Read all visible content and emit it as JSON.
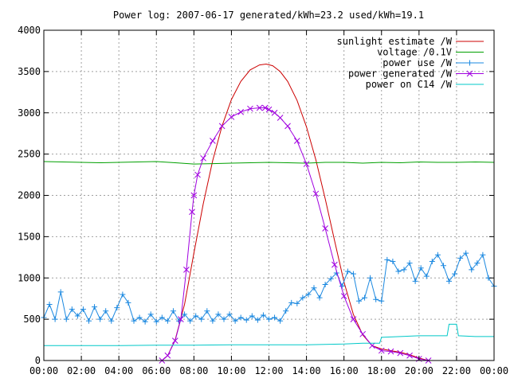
{
  "chart_data": {
    "type": "line",
    "title": "Power log: 2007-06-17 generated/kWh=23.2 used/kWh=19.1",
    "xlabel": "",
    "ylabel": "",
    "x_ticks": [
      "00:00",
      "02:00",
      "04:00",
      "06:00",
      "08:00",
      "10:00",
      "12:00",
      "14:00",
      "16:00",
      "18:00",
      "20:00",
      "22:00",
      "00:00"
    ],
    "y_ticks": [
      0,
      500,
      1000,
      1500,
      2000,
      2500,
      3000,
      3500,
      4000
    ],
    "xlim": [
      0,
      24
    ],
    "ylim": [
      0,
      4000
    ],
    "grid": true,
    "legend_position": "top-right",
    "series": [
      {
        "name": "sunlight estimate /W",
        "color": "#cc0000",
        "marker": "none",
        "x": [
          6.3,
          6.6,
          7.0,
          7.5,
          8.0,
          8.5,
          9.0,
          9.5,
          10.0,
          10.5,
          11.0,
          11.5,
          11.85,
          12.2,
          12.6,
          13.0,
          13.5,
          14.0,
          14.5,
          15.0,
          15.5,
          16.0,
          16.5,
          17.0,
          17.5,
          18.0,
          18.5,
          19.0,
          19.5,
          20.0,
          20.5
        ],
        "y": [
          0,
          60,
          250,
          680,
          1300,
          1900,
          2420,
          2840,
          3160,
          3380,
          3520,
          3580,
          3590,
          3570,
          3500,
          3380,
          3150,
          2830,
          2430,
          1960,
          1450,
          950,
          560,
          310,
          180,
          140,
          120,
          100,
          70,
          30,
          0
        ]
      },
      {
        "name": "voltage /0.1V",
        "color": "#00a000",
        "marker": "none",
        "x": [
          0,
          1,
          2,
          3,
          4,
          5,
          6,
          7,
          8,
          9,
          10,
          11,
          12,
          13,
          14,
          15,
          16,
          17,
          18,
          19,
          20,
          21,
          22,
          23,
          24
        ],
        "y": [
          2410,
          2405,
          2400,
          2395,
          2400,
          2405,
          2410,
          2395,
          2380,
          2385,
          2390,
          2395,
          2400,
          2395,
          2390,
          2400,
          2400,
          2390,
          2400,
          2395,
          2405,
          2400,
          2400,
          2405,
          2400
        ]
      },
      {
        "name": "power use /W",
        "color": "#1a88e0",
        "marker": "plus",
        "x": [
          0,
          0.3,
          0.6,
          0.9,
          1.2,
          1.5,
          1.8,
          2.1,
          2.4,
          2.7,
          3.0,
          3.3,
          3.6,
          3.9,
          4.2,
          4.5,
          4.8,
          5.1,
          5.4,
          5.7,
          6.0,
          6.3,
          6.6,
          6.9,
          7.2,
          7.5,
          7.8,
          8.1,
          8.4,
          8.7,
          9.0,
          9.3,
          9.6,
          9.9,
          10.2,
          10.5,
          10.8,
          11.1,
          11.4,
          11.7,
          12.0,
          12.3,
          12.6,
          12.9,
          13.2,
          13.5,
          13.8,
          14.1,
          14.4,
          14.7,
          15.0,
          15.3,
          15.6,
          15.9,
          16.2,
          16.5,
          16.8,
          17.1,
          17.4,
          17.7,
          18.0,
          18.3,
          18.6,
          18.9,
          19.2,
          19.5,
          19.8,
          20.1,
          20.4,
          20.7,
          21.0,
          21.3,
          21.6,
          21.9,
          22.2,
          22.5,
          22.8,
          23.1,
          23.4,
          23.7,
          24.0
        ],
        "y": [
          520,
          680,
          500,
          830,
          500,
          620,
          540,
          620,
          480,
          650,
          500,
          600,
          480,
          640,
          800,
          700,
          480,
          520,
          470,
          560,
          470,
          520,
          480,
          600,
          480,
          560,
          480,
          540,
          500,
          600,
          480,
          560,
          500,
          560,
          480,
          520,
          490,
          540,
          490,
          550,
          500,
          520,
          480,
          600,
          700,
          690,
          760,
          800,
          880,
          760,
          920,
          990,
          1060,
          900,
          1080,
          1050,
          720,
          760,
          1000,
          740,
          720,
          1220,
          1200,
          1080,
          1100,
          1180,
          960,
          1120,
          1020,
          1200,
          1280,
          1150,
          960,
          1050,
          1240,
          1300,
          1100,
          1180,
          1280,
          1000,
          900
        ]
      },
      {
        "name": "power generated /W",
        "color": "#a000e0",
        "marker": "x",
        "x": [
          6.3,
          6.6,
          7.0,
          7.3,
          7.6,
          7.9,
          8.0,
          8.2,
          8.5,
          9.0,
          9.5,
          10.0,
          10.5,
          11.0,
          11.5,
          11.8,
          12.0,
          12.3,
          12.6,
          13.0,
          13.5,
          14.0,
          14.5,
          15.0,
          15.5,
          16.0,
          16.5,
          17.0,
          17.5,
          18.0,
          18.5,
          19.0,
          19.5,
          20.0,
          20.5
        ],
        "y": [
          0,
          60,
          240,
          500,
          1100,
          1800,
          2000,
          2250,
          2450,
          2660,
          2840,
          2950,
          3010,
          3050,
          3060,
          3060,
          3040,
          3000,
          2940,
          2840,
          2660,
          2380,
          2020,
          1600,
          1160,
          780,
          500,
          320,
          180,
          120,
          110,
          90,
          60,
          20,
          0
        ]
      },
      {
        "name": "power on C14 /W",
        "color": "#00c8c8",
        "marker": "none",
        "x": [
          0,
          2,
          4,
          6,
          8,
          10,
          12,
          14,
          16,
          17,
          17.9,
          18.0,
          19,
          20,
          21,
          21.5,
          21.6,
          22.0,
          22.1,
          23,
          24
        ],
        "y": [
          180,
          180,
          180,
          185,
          185,
          190,
          190,
          190,
          200,
          210,
          210,
          280,
          290,
          300,
          300,
          300,
          440,
          440,
          300,
          290,
          290
        ]
      }
    ]
  }
}
